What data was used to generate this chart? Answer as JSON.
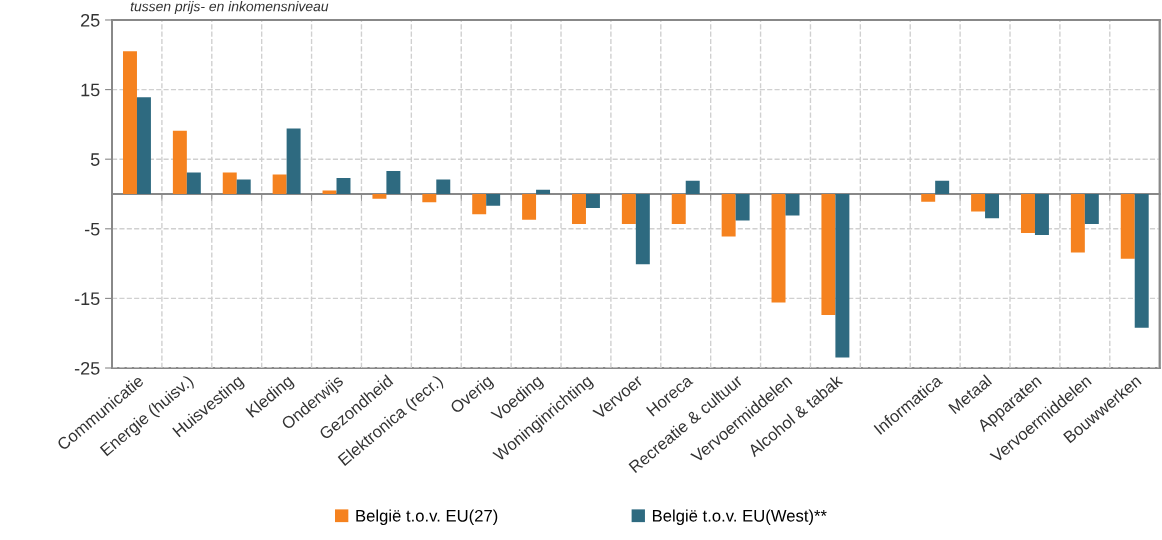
{
  "chart_data": {
    "type": "bar",
    "categories": [
      "Communicatie",
      "Energie (huisv.)",
      "Huisvesting",
      "Kleding",
      "Onderwijs",
      "Gezondheid",
      "Elektronica (recr.)",
      "Overig",
      "Voeding",
      "Woninginrichting",
      "Vervoer",
      "Horeca",
      "Recreatie & cultuur",
      "Vervoermiddelen",
      "Alcohol & tabak",
      null,
      "Informatica",
      "Metaal",
      "Apparaten",
      "Vervoermiddelen",
      "Bouwwerken"
    ],
    "series": [
      {
        "name": "België t.o.v. EU(27)",
        "color": "#f5821f",
        "values": [
          20.5,
          9.1,
          3.1,
          2.8,
          0.5,
          -0.7,
          -1.2,
          -2.9,
          -3.7,
          -4.3,
          -4.3,
          -4.3,
          -6.1,
          -15.6,
          -17.4,
          null,
          -1.1,
          -2.5,
          -5.6,
          -8.4,
          -9.3
        ]
      },
      {
        "name": "België t.o.v. EU(West)**",
        "color": "#2e6a80",
        "values": [
          13.9,
          3.1,
          2.1,
          9.4,
          2.3,
          3.3,
          2.1,
          -1.7,
          0.6,
          -2.0,
          -10.1,
          1.9,
          -3.8,
          -3.1,
          -23.5,
          null,
          1.9,
          -3.5,
          -5.9,
          -4.3,
          -19.2
        ]
      }
    ],
    "ylim": [
      -25,
      25
    ],
    "yticks": [
      -25,
      -15,
      -5,
      5,
      15,
      25
    ],
    "grid": true,
    "legend": "bottom",
    "annotations": [
      "tussen prijs- en inkomensniveau"
    ]
  }
}
